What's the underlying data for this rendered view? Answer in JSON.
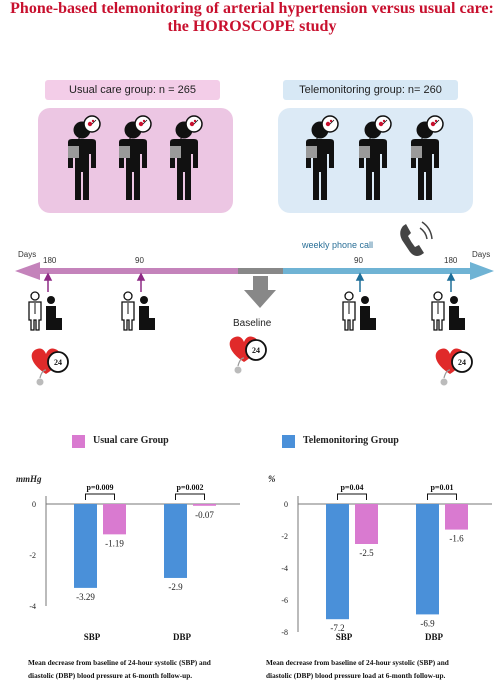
{
  "title": {
    "line1": "Phone-based telemonitoring of arterial hypertension versus usual care:",
    "line2": "the HOROSCOPE study"
  },
  "groups": {
    "usual_care": {
      "label": "Usual care group: n = 265",
      "color": "#f3cde8",
      "box_color": "#ecc6e3"
    },
    "telemonitoring": {
      "label": "Telemonitoring group: n= 260",
      "color": "#d7e8f5",
      "box_color": "#dceaf6"
    }
  },
  "timeline": {
    "left_days": "Days",
    "right_days": "Days",
    "left_180": "180",
    "left_90": "90",
    "right_90": "90",
    "right_180": "180",
    "weekly_call": "weekly phone call",
    "baseline": "Baseline",
    "badge_text": "24",
    "left_color": "#c483bb",
    "right_color": "#6fb3d4",
    "center_color": "#888888"
  },
  "legend": {
    "usual": {
      "label": "Usual care Group",
      "color": "#d97ad0"
    },
    "tele": {
      "label": "Telemonitoring Group",
      "color": "#4a90d9"
    }
  },
  "chart_data": [
    {
      "type": "bar",
      "ylabel": "mmHg",
      "ylim": [
        -4,
        0
      ],
      "yticks": [
        "0",
        "-2",
        "-4"
      ],
      "categories": [
        "SBP",
        "DBP"
      ],
      "series": [
        {
          "name": "Telemonitoring Group",
          "values": [
            -3.29,
            -2.9
          ],
          "labels": [
            "-3.29",
            "-2.9"
          ]
        },
        {
          "name": "Usual care Group",
          "values": [
            -1.19,
            -0.07
          ],
          "labels": [
            "-1.19",
            "-0.07"
          ]
        }
      ],
      "pvalues": [
        "p=0.009",
        "p=0.002"
      ],
      "caption_line1": "Mean decrease from baseline of 24-hour systolic (SBP) and",
      "caption_line2": "diastolic (DBP) blood pressure at 6-month follow-up."
    },
    {
      "type": "bar",
      "ylabel": "%",
      "ylim": [
        -8,
        0
      ],
      "yticks": [
        "0",
        "-2",
        "-4",
        "-6",
        "-8"
      ],
      "categories": [
        "SBP",
        "DBP"
      ],
      "series": [
        {
          "name": "Telemonitoring Group",
          "values": [
            -7.2,
            -6.9
          ],
          "labels": [
            "-7.2",
            "-6.9"
          ]
        },
        {
          "name": "Usual care Group",
          "values": [
            -2.5,
            -1.6
          ],
          "labels": [
            "-2.5",
            "-1.6"
          ]
        }
      ],
      "pvalues": [
        "p=0.04",
        "p=0.01"
      ],
      "caption_line1": "Mean decrease from baseline of 24-hour systolic (SBP) and",
      "caption_line2": "diastolic (DBP) blood pressure load at 6-month follow-up."
    }
  ]
}
